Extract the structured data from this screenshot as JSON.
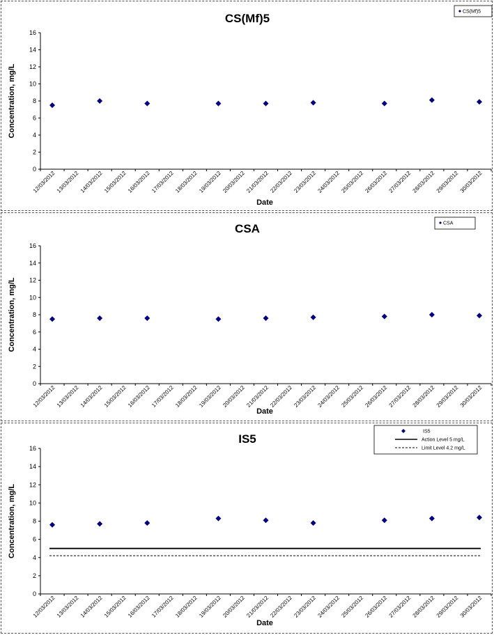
{
  "colors": {
    "marker": "#000080",
    "axis": "#000000",
    "threshold": "#000000"
  },
  "chart_data": [
    {
      "type": "scatter",
      "title": "CS(Mf)5",
      "xlabel": "Date",
      "ylabel": "Concentration, mg/L",
      "ylim": [
        0,
        16
      ],
      "yticks": [
        0,
        2,
        4,
        6,
        8,
        10,
        12,
        14,
        16
      ],
      "x_tick_labels": [
        "12/03/2012",
        "13/03/2012",
        "14/03/2012",
        "15/03/2012",
        "16/03/2012",
        "17/03/2012",
        "18/03/2012",
        "19/03/2012",
        "20/03/2012",
        "21/03/2012",
        "22/03/2012",
        "23/03/2012",
        "24/03/2012",
        "25/03/2012",
        "26/03/2012",
        "27/03/2012",
        "28/03/2012",
        "29/03/2012",
        "30/03/2012"
      ],
      "grid": false,
      "legend_position": "top-right",
      "series": [
        {
          "name": "CS(Mf)5",
          "marker": "diamond",
          "points": [
            {
              "x": "12/03/2012",
              "y": 7.5
            },
            {
              "x": "14/03/2012",
              "y": 8.0
            },
            {
              "x": "16/03/2012",
              "y": 7.7
            },
            {
              "x": "19/03/2012",
              "y": 7.7
            },
            {
              "x": "21/03/2012",
              "y": 7.7
            },
            {
              "x": "23/03/2012",
              "y": 7.8
            },
            {
              "x": "26/03/2012",
              "y": 7.7
            },
            {
              "x": "28/03/2012",
              "y": 8.1
            },
            {
              "x": "30/03/2012",
              "y": 7.9
            }
          ]
        }
      ],
      "reference_lines": []
    },
    {
      "type": "scatter",
      "title": "CSA",
      "xlabel": "Date",
      "ylabel": "Concentration, mg/L",
      "ylim": [
        0,
        16
      ],
      "yticks": [
        0,
        2,
        4,
        6,
        8,
        10,
        12,
        14,
        16
      ],
      "x_tick_labels": [
        "12/03/2012",
        "13/03/2012",
        "14/03/2012",
        "15/03/2012",
        "16/03/2012",
        "17/03/2012",
        "18/03/2012",
        "19/03/2012",
        "20/03/2012",
        "21/03/2012",
        "22/03/2012",
        "23/03/2012",
        "24/03/2012",
        "25/03/2012",
        "26/03/2012",
        "27/03/2012",
        "28/03/2012",
        "29/03/2012",
        "30/03/2012"
      ],
      "grid": false,
      "legend_position": "top-right",
      "series": [
        {
          "name": "CSA",
          "marker": "diamond",
          "points": [
            {
              "x": "12/03/2012",
              "y": 7.5
            },
            {
              "x": "14/03/2012",
              "y": 7.6
            },
            {
              "x": "16/03/2012",
              "y": 7.6
            },
            {
              "x": "19/03/2012",
              "y": 7.5
            },
            {
              "x": "21/03/2012",
              "y": 7.6
            },
            {
              "x": "23/03/2012",
              "y": 7.7
            },
            {
              "x": "26/03/2012",
              "y": 7.8
            },
            {
              "x": "28/03/2012",
              "y": 8.0
            },
            {
              "x": "30/03/2012",
              "y": 7.9
            }
          ]
        }
      ],
      "reference_lines": []
    },
    {
      "type": "scatter",
      "title": "IS5",
      "xlabel": "Date",
      "ylabel": "Concentration, mg/L",
      "ylim": [
        0,
        16
      ],
      "yticks": [
        0,
        2,
        4,
        6,
        8,
        10,
        12,
        14,
        16
      ],
      "x_tick_labels": [
        "12/03/2012",
        "13/03/2012",
        "14/03/2012",
        "15/03/2012",
        "16/03/2012",
        "17/03/2012",
        "18/03/2012",
        "19/03/2012",
        "20/03/2012",
        "21/03/2012",
        "22/03/2012",
        "23/03/2012",
        "24/03/2012",
        "25/03/2012",
        "26/03/2012",
        "27/03/2012",
        "28/03/2012",
        "29/03/2012",
        "30/03/2012"
      ],
      "grid": false,
      "legend_position": "top-right",
      "series": [
        {
          "name": "IS5",
          "marker": "diamond",
          "points": [
            {
              "x": "12/03/2012",
              "y": 7.6
            },
            {
              "x": "14/03/2012",
              "y": 7.7
            },
            {
              "x": "16/03/2012",
              "y": 7.8
            },
            {
              "x": "19/03/2012",
              "y": 8.3
            },
            {
              "x": "21/03/2012",
              "y": 8.1
            },
            {
              "x": "23/03/2012",
              "y": 7.8
            },
            {
              "x": "26/03/2012",
              "y": 8.1
            },
            {
              "x": "28/03/2012",
              "y": 8.3
            },
            {
              "x": "30/03/2012",
              "y": 8.4
            }
          ]
        }
      ],
      "reference_lines": [
        {
          "name": "Action Level 5 mg/L",
          "y": 5,
          "style": "solid"
        },
        {
          "name": "Limit Level 4.2 mg/L",
          "y": 4.2,
          "style": "dashed"
        }
      ]
    }
  ]
}
